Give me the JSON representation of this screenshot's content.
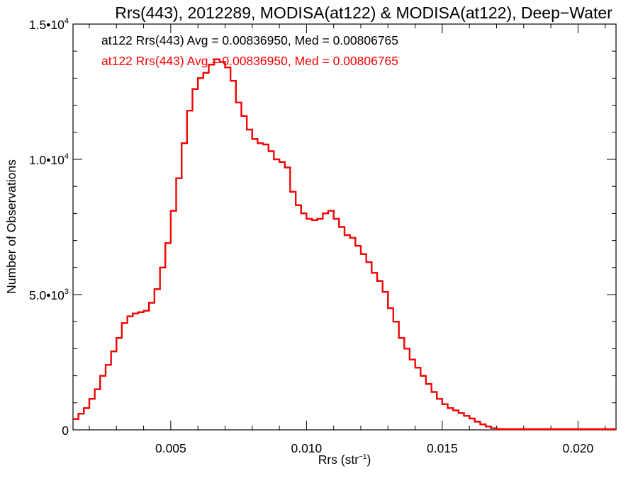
{
  "chart_data": {
    "type": "line",
    "title": "Rrs(443), 2012289, MODISA(at122) & MODISA(at122), Deep−Water",
    "xlabel_main": "Rrs (str",
    "xlabel_sup": "−1",
    "xlabel_close": ")",
    "ylabel": "Number of Observations",
    "xlim": [
      0.0014,
      0.0214
    ],
    "ylim": [
      0,
      15000
    ],
    "xticks": [
      {
        "value": 0.005,
        "label": "0.005"
      },
      {
        "value": 0.01,
        "label": "0.010"
      },
      {
        "value": 0.015,
        "label": "0.015"
      },
      {
        "value": 0.02,
        "label": "0.020"
      }
    ],
    "yticks": [
      {
        "value": 0,
        "mant": "0",
        "exp": ""
      },
      {
        "value": 5000,
        "mant": "5.0•10",
        "exp": "3"
      },
      {
        "value": 10000,
        "mant": "1.0•10",
        "exp": "4"
      },
      {
        "value": 15000,
        "mant": "1.5•10",
        "exp": "4"
      }
    ],
    "annotations": [
      "at122 Rrs(443) Avg = 0.00836950, Med = 0.00806765",
      "at122 Rrs(443) Avg = 0.00836950, Med = 0.00806765"
    ],
    "colors": {
      "series_a": "#000000",
      "series_b": "#ff0000",
      "axes": "#000000"
    },
    "series": [
      {
        "x": [
          0.0014,
          0.0016,
          0.0018,
          0.002,
          0.0022,
          0.0024,
          0.0026,
          0.0028,
          0.003,
          0.0032,
          0.0034,
          0.0036,
          0.0038,
          0.004,
          0.0042,
          0.0044,
          0.0046,
          0.0048,
          0.005,
          0.0052,
          0.0054,
          0.0056,
          0.0058,
          0.006,
          0.0062,
          0.0064,
          0.0066,
          0.0068,
          0.007,
          0.0072,
          0.0074,
          0.0076,
          0.0078,
          0.008,
          0.0082,
          0.0084,
          0.0086,
          0.0088,
          0.009,
          0.0092,
          0.0094,
          0.0096,
          0.0098,
          0.01,
          0.0102,
          0.0104,
          0.0106,
          0.0108,
          0.011,
          0.0112,
          0.0114,
          0.0116,
          0.0118,
          0.012,
          0.0122,
          0.0124,
          0.0126,
          0.0128,
          0.013,
          0.0132,
          0.0134,
          0.0136,
          0.0138,
          0.014,
          0.0142,
          0.0144,
          0.0146,
          0.0148,
          0.015,
          0.0152,
          0.0154,
          0.0156,
          0.0158,
          0.016,
          0.0162,
          0.0164,
          0.0166,
          0.0168,
          0.017,
          0.0172,
          0.0174,
          0.0176,
          0.0178,
          0.018,
          0.0185,
          0.019,
          0.02,
          0.0214
        ],
        "values": [
          400,
          600,
          800,
          1150,
          1500,
          2000,
          2400,
          2900,
          3400,
          3950,
          4200,
          4300,
          4350,
          4400,
          4700,
          5200,
          6000,
          6900,
          8100,
          9300,
          10600,
          11800,
          12600,
          13000,
          13200,
          13500,
          13700,
          13600,
          13400,
          12900,
          12100,
          11600,
          11100,
          10750,
          10600,
          10550,
          10300,
          10000,
          9900,
          9700,
          8800,
          8300,
          8000,
          7800,
          7750,
          7800,
          8000,
          8100,
          7800,
          7500,
          7200,
          7100,
          6800,
          6500,
          6200,
          5800,
          5500,
          5100,
          4500,
          4000,
          3400,
          3000,
          2600,
          2300,
          2000,
          1700,
          1400,
          1150,
          950,
          800,
          720,
          620,
          520,
          420,
          300,
          200,
          120,
          60,
          30,
          15,
          10,
          5,
          3,
          2,
          2,
          1,
          0,
          0
        ]
      }
    ]
  }
}
